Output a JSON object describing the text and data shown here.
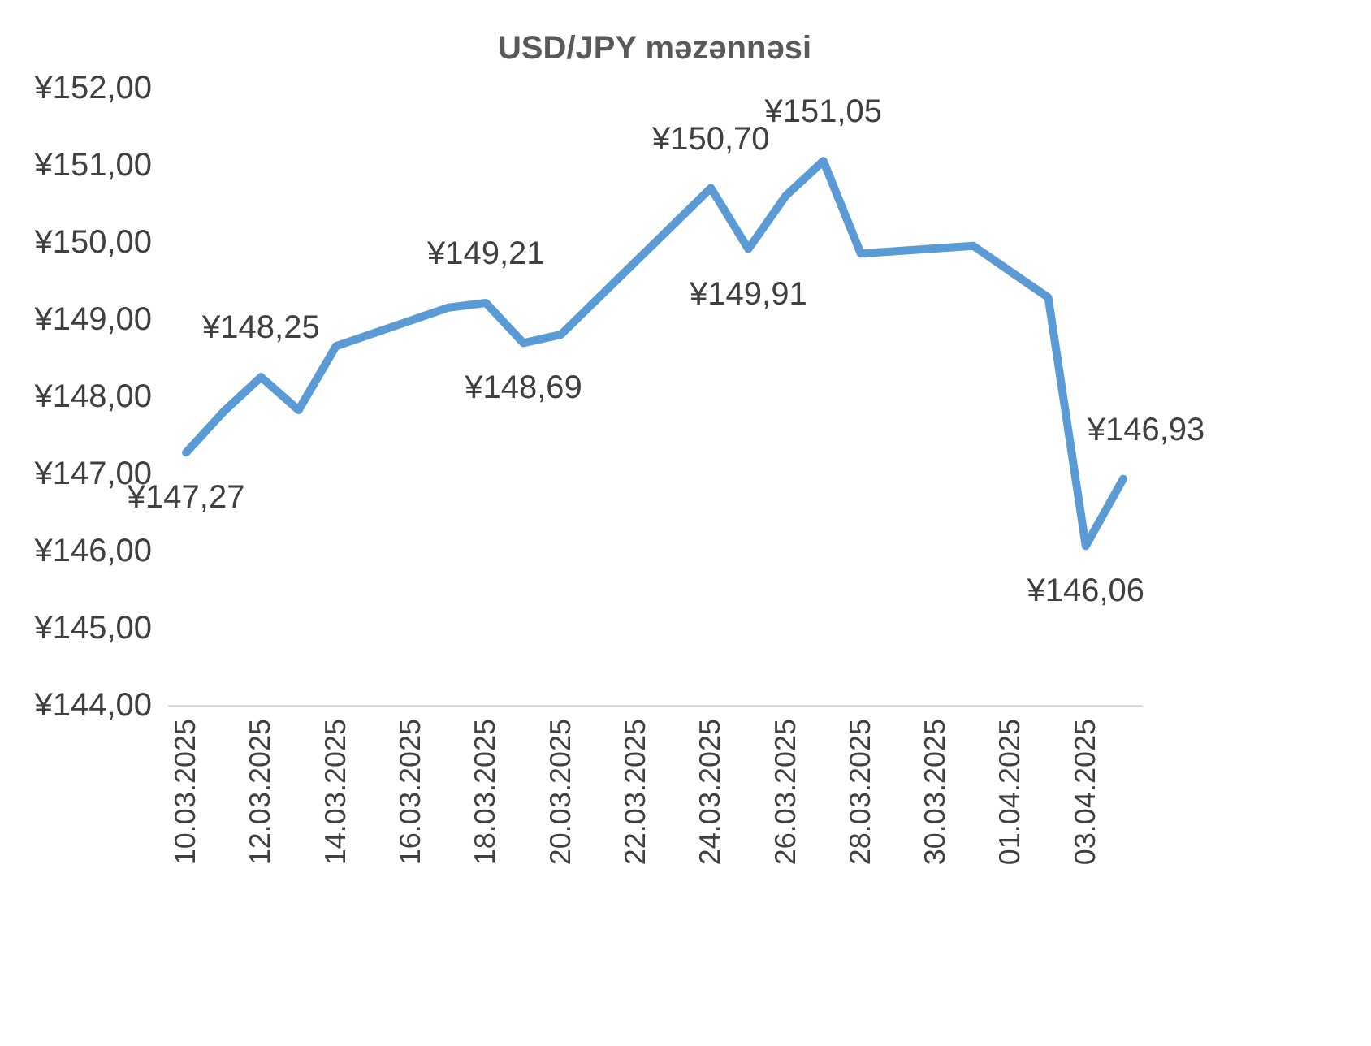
{
  "chart_data": {
    "type": "line",
    "title": "USD/JPY məzənnəsi",
    "x": [
      "2025-03-10",
      "2025-03-11",
      "2025-03-12",
      "2025-03-13",
      "2025-03-14",
      "2025-03-17",
      "2025-03-18",
      "2025-03-19",
      "2025-03-20",
      "2025-03-24",
      "2025-03-25",
      "2025-03-26",
      "2025-03-27",
      "2025-03-28",
      "2025-03-31",
      "2025-04-02",
      "2025-04-03",
      "2025-04-04"
    ],
    "series": [
      {
        "color": "#5b9bd5",
        "values": [
          147.27,
          147.8,
          148.25,
          147.82,
          148.65,
          149.15,
          149.21,
          148.69,
          148.8,
          150.7,
          149.91,
          150.6,
          151.05,
          149.85,
          149.95,
          149.28,
          146.06,
          146.93
        ],
        "value_labels": [
          "¥147,27",
          null,
          "¥148,25",
          null,
          null,
          null,
          "¥149,21",
          "¥148,69",
          null,
          "¥150,70",
          "¥149,91",
          null,
          "¥151,05",
          null,
          null,
          null,
          "¥146,06",
          "¥146,93"
        ]
      }
    ],
    "xlim": [
      "2025-03-09T12:00",
      "2025-04-04T12:00"
    ],
    "xticks": [
      {
        "value": "2025-03-10",
        "label": "10.03.2025"
      },
      {
        "value": "2025-03-12",
        "label": "12.03.2025"
      },
      {
        "value": "2025-03-14",
        "label": "14.03.2025"
      },
      {
        "value": "2025-03-16",
        "label": "16.03.2025"
      },
      {
        "value": "2025-03-18",
        "label": "18.03.2025"
      },
      {
        "value": "2025-03-20",
        "label": "20.03.2025"
      },
      {
        "value": "2025-03-22",
        "label": "22.03.2025"
      },
      {
        "value": "2025-03-24",
        "label": "24.03.2025"
      },
      {
        "value": "2025-03-26",
        "label": "26.03.2025"
      },
      {
        "value": "2025-03-28",
        "label": "28.03.2025"
      },
      {
        "value": "2025-03-30",
        "label": "30.03.2025"
      },
      {
        "value": "2025-04-01",
        "label": "01.04.2025"
      },
      {
        "value": "2025-04-03",
        "label": "03.04.2025"
      }
    ],
    "ylim": [
      144,
      152
    ],
    "yticks": [
      {
        "value": 144,
        "label": "¥144,00"
      },
      {
        "value": 145,
        "label": "¥145,00"
      },
      {
        "value": 146,
        "label": "¥146,00"
      },
      {
        "value": 147,
        "label": "¥147,00"
      },
      {
        "value": 148,
        "label": "¥148,00"
      },
      {
        "value": 149,
        "label": "¥149,00"
      },
      {
        "value": 150,
        "label": "¥150,00"
      },
      {
        "value": 151,
        "label": "¥151,00"
      },
      {
        "value": 152,
        "label": "¥152,00"
      }
    ],
    "grid": false,
    "marker": "none",
    "line_style": "solid"
  }
}
